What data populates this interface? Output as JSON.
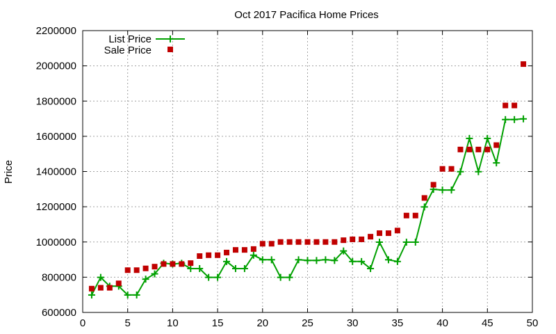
{
  "chart_data": {
    "type": "line",
    "title": "Oct 2017 Pacifica Home Prices",
    "xlabel": "",
    "ylabel": "Price",
    "xlim": [
      0,
      50
    ],
    "ylim": [
      600000,
      2200000
    ],
    "xticks": [
      0,
      5,
      10,
      15,
      20,
      25,
      30,
      35,
      40,
      45,
      50
    ],
    "yticks": [
      600000,
      800000,
      1000000,
      1200000,
      1400000,
      1600000,
      1800000,
      2000000,
      2200000
    ],
    "grid": true,
    "legend_position": "top-left",
    "colors": {
      "list": "#00a000",
      "sale": "#c00000"
    },
    "series": [
      {
        "name": "List Price",
        "style": "line-with-plus-markers",
        "x": [
          1,
          2,
          3,
          4,
          5,
          6,
          7,
          8,
          9,
          10,
          11,
          12,
          13,
          14,
          15,
          16,
          17,
          18,
          19,
          20,
          21,
          22,
          23,
          24,
          25,
          26,
          27,
          28,
          29,
          30,
          31,
          32,
          33,
          34,
          35,
          36,
          37,
          38,
          39,
          40,
          41,
          42,
          43,
          44,
          45,
          46,
          47,
          48,
          49
        ],
        "values": [
          699000,
          799000,
          749000,
          749000,
          699000,
          699000,
          789000,
          819000,
          879000,
          875000,
          879000,
          849000,
          849000,
          799000,
          799000,
          889000,
          849000,
          849000,
          925000,
          899000,
          899000,
          799000,
          799000,
          899000,
          895000,
          895000,
          899000,
          895000,
          949000,
          889000,
          889000,
          849000,
          999000,
          899000,
          889000,
          999000,
          999000,
          1199000,
          1299000,
          1295000,
          1295000,
          1399000,
          1588000,
          1399000,
          1588000,
          1449000,
          1695000,
          1695000,
          1699000
        ]
      },
      {
        "name": "Sale Price",
        "style": "square-markers",
        "x": [
          1,
          2,
          3,
          4,
          5,
          6,
          7,
          8,
          9,
          10,
          11,
          12,
          13,
          14,
          15,
          16,
          17,
          18,
          19,
          20,
          21,
          22,
          23,
          24,
          25,
          26,
          27,
          28,
          29,
          30,
          31,
          32,
          33,
          34,
          35,
          36,
          37,
          38,
          39,
          40,
          41,
          42,
          43,
          44,
          45,
          46,
          47,
          48,
          49
        ],
        "values": [
          735000,
          740000,
          740000,
          765000,
          840000,
          840000,
          850000,
          860000,
          875000,
          875000,
          875000,
          880000,
          920000,
          925000,
          925000,
          940000,
          955000,
          955000,
          960000,
          990000,
          990000,
          1000000,
          1000000,
          1000000,
          1000000,
          1000000,
          1000000,
          1000000,
          1010000,
          1015000,
          1015000,
          1030000,
          1050000,
          1050000,
          1065000,
          1150000,
          1150000,
          1250000,
          1325000,
          1415000,
          1415000,
          1525000,
          1525000,
          1525000,
          1525000,
          1550000,
          1775000,
          1775000,
          2010000
        ]
      }
    ]
  }
}
